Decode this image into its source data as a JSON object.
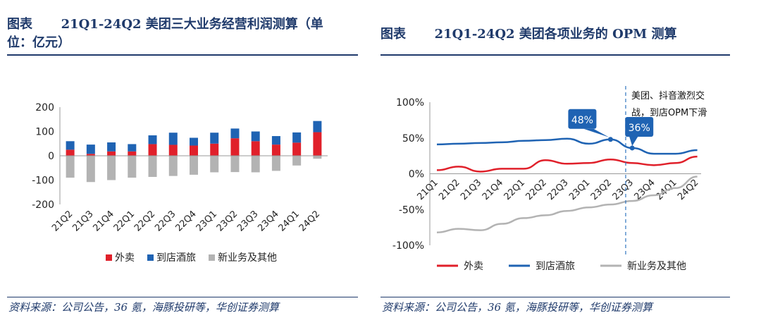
{
  "left_panel": {
    "label": "图表",
    "title_line1": "21Q1-24Q2 美团三大业务经营利润测算（单",
    "title_line2": "位：亿元）",
    "source": "资料来源：公司公告，36 氪，海豚投研等，华创证券测算"
  },
  "right_panel": {
    "label": "图表",
    "title": "21Q1-24Q2 美团各项业务的 OPM 测算",
    "source": "资料来源：公司公告，36 氪，海豚投研等，华创证券测算",
    "annotation_line1": "美团、抖音激烈交",
    "annotation_line2": "战，到店OPM下滑",
    "callout_1": "48%",
    "callout_2": "36%"
  },
  "colors": {
    "waimai": "#e0202a",
    "daodian": "#1f63b3",
    "xinyewu": "#b3b3b3",
    "title": "#1f3a6b"
  },
  "chart_data": [
    {
      "type": "bar",
      "stacked": true,
      "title": "21Q1-24Q2 美团三大业务经营利润测算（单位：亿元）",
      "categories": [
        "21Q2",
        "21Q3",
        "21Q4",
        "22Q1",
        "22Q2",
        "22Q3",
        "22Q4",
        "23Q1",
        "23Q2",
        "23Q3",
        "23Q4",
        "24Q1",
        "24Q2"
      ],
      "series": [
        {
          "name": "外卖",
          "values": [
            25,
            8,
            18,
            18,
            48,
            45,
            42,
            50,
            72,
            60,
            46,
            54,
            97
          ]
        },
        {
          "name": "到店酒旅",
          "values": [
            35,
            38,
            37,
            30,
            36,
            50,
            32,
            45,
            40,
            40,
            35,
            42,
            46
          ]
        },
        {
          "name": "新业务及其他",
          "values": [
            -90,
            -108,
            -100,
            -90,
            -87,
            -83,
            -78,
            -68,
            -67,
            -68,
            -62,
            -40,
            -12
          ]
        }
      ],
      "ylim": [
        -200,
        200
      ],
      "yticks": [
        -200,
        -100,
        0,
        100,
        200
      ],
      "legend": [
        "外卖",
        "到店酒旅",
        "新业务及其他"
      ]
    },
    {
      "type": "line",
      "title": "21Q1-24Q2 美团各项业务的 OPM 测算",
      "categories": [
        "21Q1",
        "21Q2",
        "21Q3",
        "21Q4",
        "22Q1",
        "22Q2",
        "22Q3",
        "23Q1",
        "23Q2",
        "23Q3",
        "23Q4",
        "24Q1",
        "24Q2"
      ],
      "series": [
        {
          "name": "外卖",
          "values": [
            5,
            10,
            3,
            7,
            7,
            19,
            14,
            15,
            20,
            15,
            12,
            15,
            24
          ]
        },
        {
          "name": "到店酒旅",
          "values": [
            41,
            42,
            43,
            44,
            46,
            47,
            49,
            42,
            48,
            36,
            28,
            28,
            33
          ]
        },
        {
          "name": "新业务及其他",
          "values": [
            -82,
            -77,
            -79,
            -70,
            -62,
            -58,
            -52,
            -47,
            -43,
            -38,
            -30,
            -20,
            -4
          ]
        }
      ],
      "ylim": [
        -100,
        100
      ],
      "yticks": [
        "-100%",
        "-50%",
        "0%",
        "50%",
        "100%"
      ],
      "ytick_values": [
        -100,
        -50,
        0,
        50,
        100
      ],
      "legend": [
        "外卖",
        "到店酒旅",
        "新业务及其他"
      ]
    }
  ]
}
